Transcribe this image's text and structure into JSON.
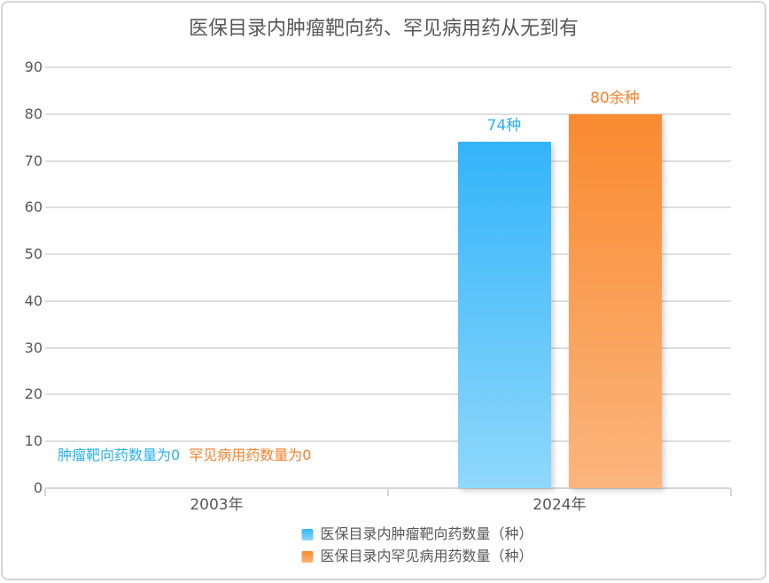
{
  "title": "医保目录内肿瘤靶向药、罕见病用药从无到有",
  "colors": {
    "title_text": "#595959",
    "axis_text": "#595959",
    "gridline": "#DEDEDE",
    "axis_line": "#D6D6D6",
    "frame_border": "#D5D5D5",
    "background": "#FFFFFF",
    "blue_top": "#33B4F9",
    "blue_bottom": "#8FD8FB",
    "orange_top": "#F98A30",
    "orange_bottom": "#FBB57E",
    "blue_text": "#2BB0EF",
    "orange_text": "#F8812C"
  },
  "chart_data": {
    "type": "bar",
    "title": "医保目录内肿瘤靶向药、罕见病用药从无到有",
    "categories": [
      "2003年",
      "2024年"
    ],
    "series": [
      {
        "name": "医保目录内肿瘤靶向药数量（种）",
        "values": [
          0,
          74
        ],
        "bar_label": "74种",
        "color": "blue"
      },
      {
        "name": "医保目录内罕见病用药数量（种）",
        "values": [
          0,
          80
        ],
        "bar_label": "80余种",
        "color": "orange"
      }
    ],
    "xlabel": "",
    "ylabel": "",
    "ylim": [
      0,
      90
    ],
    "yticks": [
      0,
      10,
      20,
      30,
      40,
      50,
      60,
      70,
      80,
      90
    ],
    "grid": true,
    "legend_position": "bottom",
    "annotations": [
      {
        "text": "肿瘤靶向药数量为0",
        "color": "blue"
      },
      {
        "text": "罕见病用药数量为0",
        "color": "orange"
      }
    ]
  }
}
